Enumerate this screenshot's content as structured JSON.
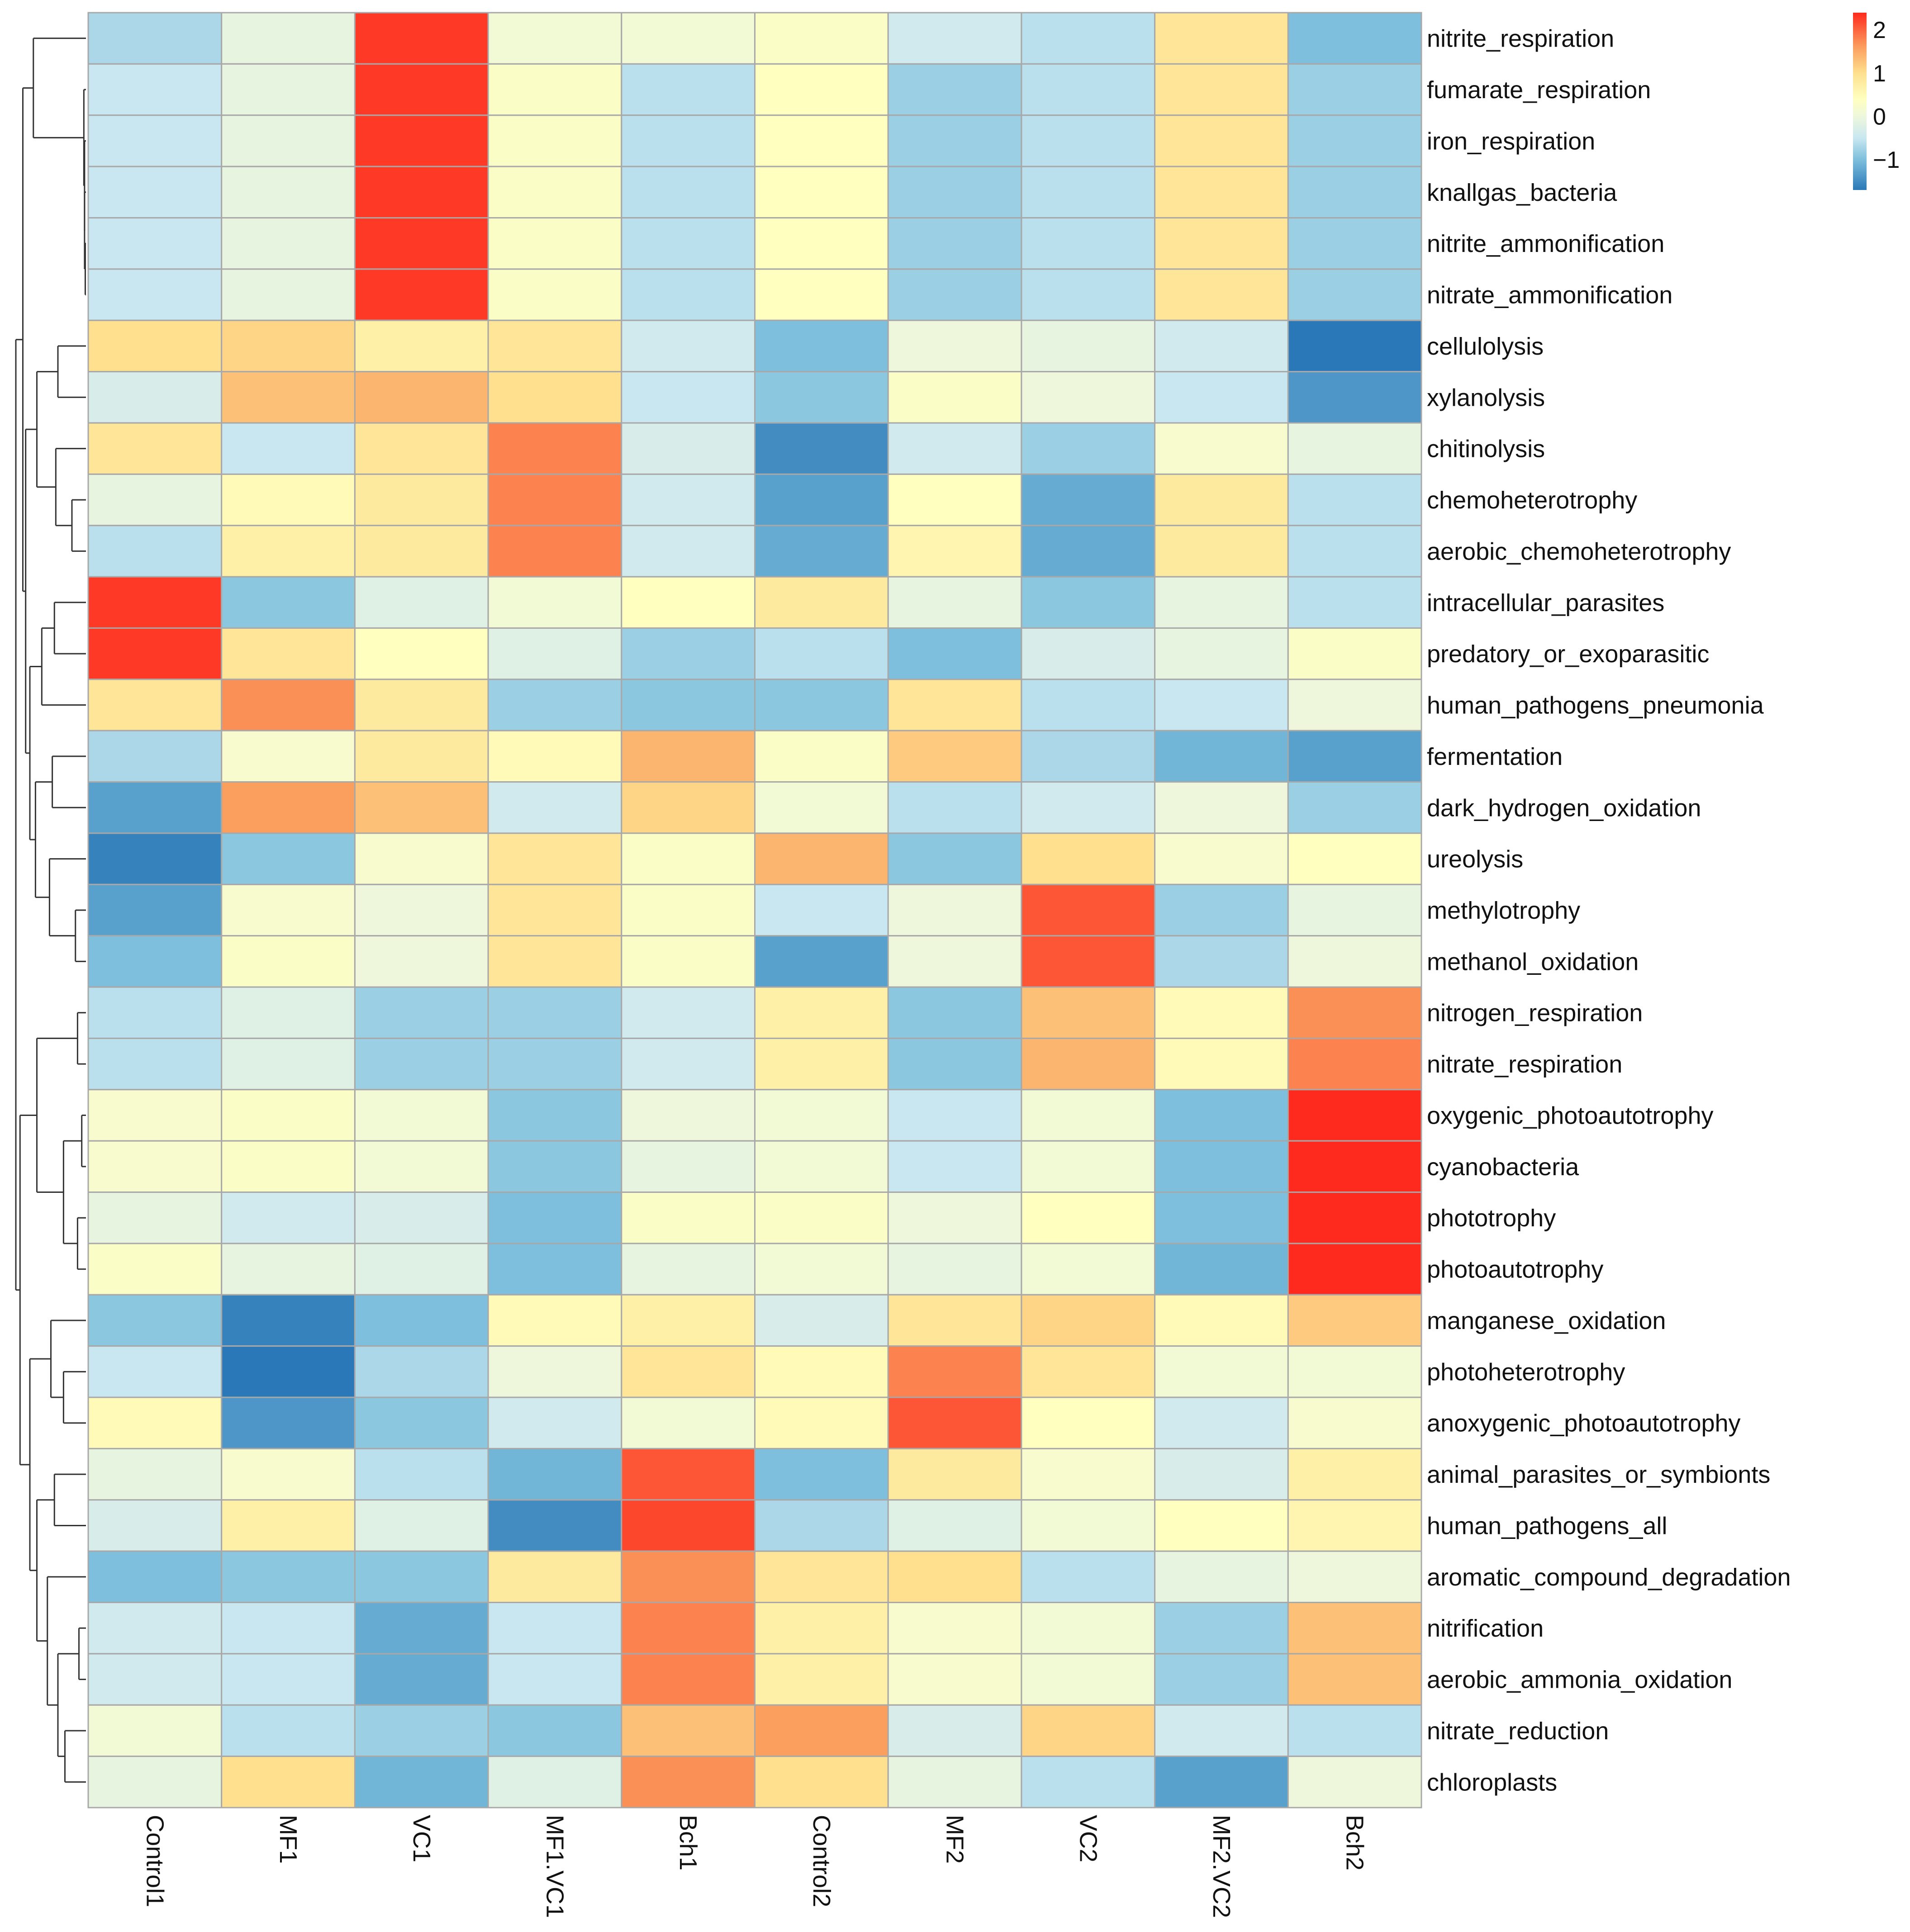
{
  "chart_data": {
    "type": "heatmap",
    "title": "",
    "columns": [
      "Control1",
      "MF1",
      "VC1",
      "MF1.VC1",
      "Bch1",
      "Control2",
      "MF2",
      "VC2",
      "MF2.VC2",
      "Bch2"
    ],
    "rows": [
      "nitrite_respiration",
      "fumarate_respiration",
      "iron_respiration",
      "knallgas_bacteria",
      "nitrite_ammonification",
      "nitrate_ammonification",
      "cellulolysis",
      "xylanolysis",
      "chitinolysis",
      "chemoheterotrophy",
      "aerobic_chemoheterotrophy",
      "intracellular_parasites",
      "predatory_or_exoparasitic",
      "human_pathogens_pneumonia",
      "fermentation",
      "dark_hydrogen_oxidation",
      "ureolysis",
      "methylotrophy",
      "methanol_oxidation",
      "nitrogen_respiration",
      "nitrate_respiration",
      "oxygenic_photoautotrophy",
      "cyanobacteria",
      "phototrophy",
      "photoautotrophy",
      "manganese_oxidation",
      "photoheterotrophy",
      "anoxygenic_photoautotrophy",
      "animal_parasites_or_symbionts",
      "human_pathogens_all",
      "aromatic_compound_degradation",
      "nitrification",
      "aerobic_ammonia_oxidation",
      "nitrate_reduction",
      "chloroplasts"
    ],
    "values": [
      [
        -0.7,
        -0.1,
        2.3,
        0.1,
        0.1,
        0.3,
        -0.4,
        -0.6,
        0.9,
        -1.0
      ],
      [
        -0.5,
        -0.1,
        2.3,
        0.3,
        -0.6,
        0.4,
        -0.8,
        -0.6,
        0.9,
        -0.8
      ],
      [
        -0.5,
        -0.1,
        2.3,
        0.3,
        -0.6,
        0.4,
        -0.8,
        -0.6,
        0.9,
        -0.8
      ],
      [
        -0.5,
        -0.1,
        2.3,
        0.3,
        -0.6,
        0.4,
        -0.8,
        -0.6,
        0.9,
        -0.8
      ],
      [
        -0.5,
        -0.1,
        2.3,
        0.3,
        -0.6,
        0.4,
        -0.8,
        -0.6,
        0.9,
        -0.8
      ],
      [
        -0.5,
        -0.1,
        2.3,
        0.3,
        -0.6,
        0.4,
        -0.8,
        -0.6,
        0.9,
        -0.8
      ],
      [
        1.0,
        1.1,
        0.7,
        0.9,
        -0.4,
        -1.0,
        0.0,
        -0.1,
        -0.4,
        -1.7
      ],
      [
        -0.3,
        1.3,
        1.4,
        1.0,
        -0.5,
        -0.9,
        0.3,
        0.0,
        -0.5,
        -1.4
      ],
      [
        0.9,
        -0.5,
        0.9,
        1.8,
        -0.3,
        -1.5,
        -0.4,
        -0.8,
        0.2,
        -0.1
      ],
      [
        -0.1,
        0.5,
        0.8,
        1.8,
        -0.4,
        -1.3,
        0.4,
        -1.2,
        0.8,
        -0.6
      ],
      [
        -0.6,
        0.7,
        0.8,
        1.8,
        -0.4,
        -1.2,
        0.6,
        -1.2,
        0.8,
        -0.6
      ],
      [
        2.3,
        -0.9,
        -0.2,
        0.1,
        0.4,
        0.8,
        -0.1,
        -0.9,
        -0.1,
        -0.6
      ],
      [
        2.3,
        0.9,
        0.4,
        -0.2,
        -0.8,
        -0.6,
        -1.0,
        -0.3,
        -0.1,
        0.3
      ],
      [
        0.9,
        1.7,
        0.8,
        -0.8,
        -0.9,
        -0.9,
        0.9,
        -0.6,
        -0.5,
        0.0
      ],
      [
        -0.7,
        0.2,
        0.8,
        0.5,
        1.4,
        0.3,
        1.2,
        -0.7,
        -1.1,
        -1.3
      ],
      [
        -1.3,
        1.6,
        1.3,
        -0.4,
        1.1,
        0.1,
        -0.6,
        -0.4,
        0.0,
        -0.8
      ],
      [
        -1.6,
        -0.9,
        0.2,
        0.9,
        0.3,
        1.4,
        -0.9,
        1.0,
        0.2,
        0.4
      ],
      [
        -1.3,
        0.2,
        0.0,
        0.9,
        0.3,
        -0.5,
        0.0,
        2.1,
        -0.8,
        -0.1
      ],
      [
        -1.0,
        0.3,
        0.0,
        0.9,
        0.3,
        -1.3,
        0.0,
        2.1,
        -0.7,
        0.0
      ],
      [
        -0.6,
        -0.2,
        -0.8,
        -0.8,
        -0.4,
        0.7,
        -0.9,
        1.3,
        0.5,
        1.7
      ],
      [
        -0.6,
        -0.2,
        -0.8,
        -0.8,
        -0.4,
        0.7,
        -0.9,
        1.4,
        0.5,
        1.8
      ],
      [
        0.2,
        0.3,
        0.1,
        -0.9,
        0.0,
        0.1,
        -0.5,
        0.1,
        -1.0,
        2.4
      ],
      [
        0.2,
        0.3,
        0.1,
        -0.9,
        -0.1,
        0.1,
        -0.5,
        0.1,
        -1.0,
        2.4
      ],
      [
        -0.1,
        -0.4,
        -0.3,
        -1.0,
        0.3,
        0.3,
        0.0,
        0.4,
        -1.0,
        2.4
      ],
      [
        0.3,
        -0.1,
        -0.2,
        -1.0,
        -0.1,
        0.1,
        -0.1,
        0.1,
        -1.1,
        2.4
      ],
      [
        -0.9,
        -1.6,
        -1.0,
        0.5,
        0.7,
        -0.3,
        0.9,
        1.1,
        0.5,
        1.2
      ],
      [
        -0.5,
        -1.8,
        -0.7,
        0.0,
        0.9,
        0.5,
        1.8,
        0.9,
        0.1,
        0.1
      ],
      [
        0.5,
        -1.4,
        -0.9,
        -0.4,
        0.1,
        0.5,
        2.1,
        0.4,
        -0.4,
        0.2
      ],
      [
        -0.1,
        0.2,
        -0.6,
        -1.1,
        2.1,
        -1.0,
        0.8,
        0.2,
        -0.3,
        0.7
      ],
      [
        -0.3,
        0.7,
        -0.2,
        -1.5,
        2.2,
        -0.7,
        -0.2,
        0.1,
        0.4,
        0.6
      ],
      [
        -1.0,
        -0.9,
        -0.9,
        0.8,
        1.7,
        0.9,
        1.0,
        -0.6,
        -0.1,
        0.0
      ],
      [
        -0.4,
        -0.5,
        -1.2,
        -0.5,
        1.8,
        0.7,
        0.2,
        0.1,
        -0.8,
        1.3
      ],
      [
        -0.4,
        -0.5,
        -1.2,
        -0.5,
        1.8,
        0.7,
        0.2,
        0.1,
        -0.8,
        1.3
      ],
      [
        0.1,
        -0.6,
        -0.8,
        -0.9,
        1.3,
        1.6,
        -0.3,
        1.1,
        -0.4,
        -0.6
      ],
      [
        -0.1,
        1.0,
        -1.1,
        -0.2,
        1.7,
        1.0,
        -0.1,
        -0.6,
        -1.3,
        0.0
      ]
    ],
    "color_scale": {
      "min": -1.7,
      "max": 2.4,
      "stops": [
        [
          -1.7,
          "#2a78b8"
        ],
        [
          -1.0,
          "#7dbfdc"
        ],
        [
          -0.5,
          "#c9e7f1"
        ],
        [
          0.0,
          "#eef7dc"
        ],
        [
          0.4,
          "#ffffc0"
        ],
        [
          1.0,
          "#fee08f"
        ],
        [
          1.6,
          "#fb9f5f"
        ],
        [
          2.4,
          "#fe2a1d"
        ]
      ]
    },
    "legend": {
      "ticks": [
        "2",
        "1",
        "0",
        "−1"
      ],
      "tick_values": [
        2,
        1,
        0,
        -1
      ],
      "placement": "top-right"
    },
    "row_dendrogram": {
      "h": 10,
      "c": [
        {
          "h": 9,
          "c": [
            {
              "h": 7.5,
              "c": [
                0,
                {
                  "h": 0.3,
                  "c": [
                    1,
                    {
                      "h": 0.2,
                      "c": [
                        2,
                        {
                          "h": 0.2,
                          "c": [
                            3,
                            {
                              "h": 0.1,
                              "c": [
                                4,
                                5
                              ]
                            }
                          ]
                        }
                      ]
                    }
                  ]
                }
              ]
            },
            {
              "h": 8.6,
              "c": [
                {
                  "h": 7,
                  "c": [
                    {
                      "h": 4,
                      "c": [
                        6,
                        7
                      ]
                    },
                    {
                      "h": 4.3,
                      "c": [
                        8,
                        {
                          "h": 2,
                          "c": [
                            9,
                            10
                          ]
                        }
                      ]
                    }
                  ]
                },
                {
                  "h": 8,
                  "c": [
                    {
                      "h": 6.3,
                      "c": [
                        {
                          "h": 4.5,
                          "c": [
                            11,
                            12
                          ]
                        },
                        13
                      ]
                    },
                    {
                      "h": 7.2,
                      "c": [
                        {
                          "h": 4.8,
                          "c": [
                            14,
                            15
                          ]
                        },
                        {
                          "h": 5.2,
                          "c": [
                            16,
                            {
                              "h": 1.5,
                              "c": [
                                17,
                                18
                              ]
                            }
                          ]
                        }
                      ]
                    }
                  ]
                }
              ]
            }
          ]
        },
        {
          "h": 9.4,
          "c": [
            {
              "h": 7,
              "c": [
                {
                  "h": 1.2,
                  "c": [
                    19,
                    20
                  ]
                },
                {
                  "h": 3.2,
                  "c": [
                    {
                      "h": 0.6,
                      "c": [
                        21,
                        22
                      ]
                    },
                    {
                      "h": 1.2,
                      "c": [
                        23,
                        24
                      ]
                    }
                  ]
                }
              ]
            },
            {
              "h": 8,
              "c": [
                {
                  "h": 5,
                  "c": [
                    25,
                    {
                      "h": 3.2,
                      "c": [
                        26,
                        27
                      ]
                    }
                  ]
                },
                {
                  "h": 7,
                  "c": [
                    {
                      "h": 4.5,
                      "c": [
                        28,
                        29
                      ]
                    },
                    {
                      "h": 5.5,
                      "c": [
                        30,
                        {
                          "h": 4,
                          "c": [
                            {
                              "h": 1,
                              "c": [
                                31,
                                32
                              ]
                            },
                            {
                              "h": 3,
                              "c": [
                                33,
                                34
                              ]
                            }
                          ]
                        }
                      ]
                    }
                  ]
                }
              ]
            }
          ]
        }
      ]
    }
  }
}
